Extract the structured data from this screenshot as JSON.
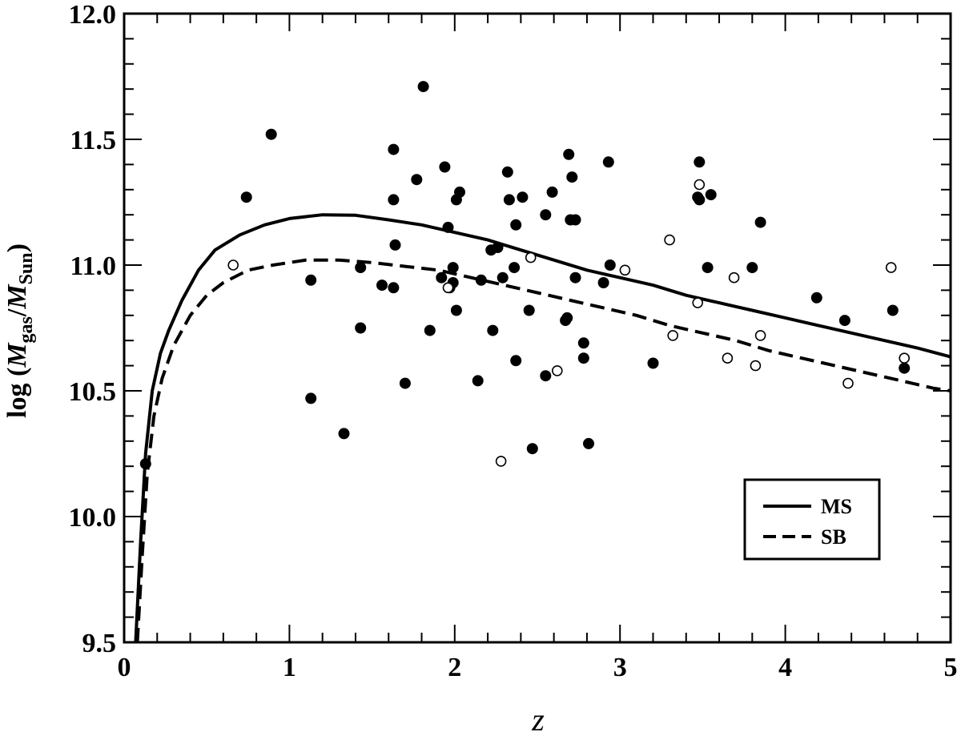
{
  "chart_data": {
    "type": "scatter",
    "xlabel": "z",
    "ylabel": {
      "prefix": "log (",
      "m1": "M",
      "sub1": "gas",
      "slash": "/",
      "m2": "M",
      "sub2": "Sun",
      "suffix": ")"
    },
    "xlim": [
      0,
      5
    ],
    "ylim": [
      9.5,
      12.0
    ],
    "x_ticks": [
      "0",
      "1",
      "2",
      "3",
      "4",
      "5"
    ],
    "y_ticks": [
      "9.5",
      "10.0",
      "10.5",
      "11.0",
      "11.5",
      "12.0"
    ],
    "legend": {
      "position": "bottom-right",
      "entries": [
        {
          "label": "MS",
          "style": "solid"
        },
        {
          "label": "SB",
          "style": "dashed"
        }
      ]
    },
    "lines": [
      {
        "name": "MS",
        "style": "solid",
        "points": [
          [
            0.07,
            9.5
          ],
          [
            0.1,
            9.9
          ],
          [
            0.13,
            10.25
          ],
          [
            0.17,
            10.5
          ],
          [
            0.22,
            10.65
          ],
          [
            0.27,
            10.74
          ],
          [
            0.35,
            10.86
          ],
          [
            0.45,
            10.98
          ],
          [
            0.55,
            11.06
          ],
          [
            0.7,
            11.12
          ],
          [
            0.85,
            11.16
          ],
          [
            1.0,
            11.185
          ],
          [
            1.2,
            11.2
          ],
          [
            1.4,
            11.198
          ],
          [
            1.6,
            11.18
          ],
          [
            1.8,
            11.16
          ],
          [
            2.0,
            11.13
          ],
          [
            2.2,
            11.1
          ],
          [
            2.4,
            11.06
          ],
          [
            2.6,
            11.02
          ],
          [
            2.8,
            10.98
          ],
          [
            3.0,
            10.95
          ],
          [
            3.2,
            10.92
          ],
          [
            3.4,
            10.88
          ],
          [
            3.6,
            10.85
          ],
          [
            3.8,
            10.82
          ],
          [
            4.0,
            10.79
          ],
          [
            4.2,
            10.76
          ],
          [
            4.4,
            10.73
          ],
          [
            4.6,
            10.7
          ],
          [
            4.8,
            10.67
          ],
          [
            5.0,
            10.635
          ]
        ]
      },
      {
        "name": "SB",
        "style": "dashed",
        "points": [
          [
            0.08,
            9.5
          ],
          [
            0.11,
            9.85
          ],
          [
            0.14,
            10.17
          ],
          [
            0.18,
            10.4
          ],
          [
            0.23,
            10.55
          ],
          [
            0.3,
            10.68
          ],
          [
            0.4,
            10.8
          ],
          [
            0.5,
            10.88
          ],
          [
            0.6,
            10.93
          ],
          [
            0.75,
            10.98
          ],
          [
            0.9,
            11.0
          ],
          [
            1.1,
            11.02
          ],
          [
            1.3,
            11.02
          ],
          [
            1.5,
            11.01
          ],
          [
            1.7,
            10.995
          ],
          [
            1.9,
            10.98
          ],
          [
            2.1,
            10.95
          ],
          [
            2.3,
            10.92
          ],
          [
            2.5,
            10.89
          ],
          [
            2.7,
            10.86
          ],
          [
            2.9,
            10.83
          ],
          [
            3.1,
            10.8
          ],
          [
            3.3,
            10.76
          ],
          [
            3.5,
            10.73
          ],
          [
            3.7,
            10.7
          ],
          [
            3.9,
            10.66
          ],
          [
            4.1,
            10.63
          ],
          [
            4.3,
            10.6
          ],
          [
            4.5,
            10.57
          ],
          [
            4.7,
            10.54
          ],
          [
            4.9,
            10.51
          ],
          [
            5.0,
            10.5
          ]
        ]
      }
    ],
    "series": [
      {
        "name": "filled",
        "marker": "filled-circle",
        "points": [
          [
            0.13,
            10.21
          ],
          [
            0.74,
            11.27
          ],
          [
            0.89,
            11.52
          ],
          [
            1.13,
            10.94
          ],
          [
            1.13,
            10.47
          ],
          [
            1.33,
            10.33
          ],
          [
            1.43,
            10.99
          ],
          [
            1.43,
            10.75
          ],
          [
            1.56,
            10.92
          ],
          [
            1.63,
            11.46
          ],
          [
            1.63,
            11.26
          ],
          [
            1.64,
            11.08
          ],
          [
            1.63,
            10.91
          ],
          [
            1.7,
            10.53
          ],
          [
            1.77,
            11.34
          ],
          [
            1.81,
            11.71
          ],
          [
            1.85,
            10.74
          ],
          [
            1.92,
            10.95
          ],
          [
            1.94,
            11.39
          ],
          [
            1.96,
            11.15
          ],
          [
            1.97,
            10.91
          ],
          [
            1.99,
            10.99
          ],
          [
            1.99,
            10.93
          ],
          [
            2.01,
            11.26
          ],
          [
            2.01,
            10.82
          ],
          [
            2.03,
            11.29
          ],
          [
            2.14,
            10.54
          ],
          [
            2.16,
            10.94
          ],
          [
            2.22,
            11.06
          ],
          [
            2.23,
            10.74
          ],
          [
            2.26,
            11.07
          ],
          [
            2.29,
            10.95
          ],
          [
            2.32,
            11.37
          ],
          [
            2.33,
            11.26
          ],
          [
            2.36,
            10.99
          ],
          [
            2.37,
            11.16
          ],
          [
            2.37,
            10.62
          ],
          [
            2.41,
            11.27
          ],
          [
            2.45,
            10.82
          ],
          [
            2.47,
            10.27
          ],
          [
            2.55,
            11.2
          ],
          [
            2.55,
            10.56
          ],
          [
            2.59,
            11.29
          ],
          [
            2.67,
            10.78
          ],
          [
            2.68,
            10.79
          ],
          [
            2.69,
            11.44
          ],
          [
            2.7,
            11.18
          ],
          [
            2.71,
            11.35
          ],
          [
            2.73,
            11.18
          ],
          [
            2.73,
            10.95
          ],
          [
            2.78,
            10.63
          ],
          [
            2.78,
            10.69
          ],
          [
            2.81,
            10.29
          ],
          [
            2.9,
            10.93
          ],
          [
            2.93,
            11.41
          ],
          [
            2.94,
            11.0
          ],
          [
            3.2,
            10.61
          ],
          [
            3.47,
            11.27
          ],
          [
            3.48,
            11.41
          ],
          [
            3.48,
            11.26
          ],
          [
            3.53,
            10.99
          ],
          [
            3.55,
            11.28
          ],
          [
            3.8,
            10.99
          ],
          [
            3.85,
            11.17
          ],
          [
            4.19,
            10.87
          ],
          [
            4.36,
            10.78
          ],
          [
            4.65,
            10.82
          ],
          [
            4.72,
            10.59
          ]
        ]
      },
      {
        "name": "open",
        "marker": "open-circle",
        "points": [
          [
            0.66,
            11.0
          ],
          [
            1.96,
            10.91
          ],
          [
            2.28,
            10.22
          ],
          [
            2.46,
            11.03
          ],
          [
            2.62,
            10.58
          ],
          [
            3.03,
            10.98
          ],
          [
            3.3,
            11.1
          ],
          [
            3.32,
            10.72
          ],
          [
            3.47,
            10.85
          ],
          [
            3.48,
            11.32
          ],
          [
            3.65,
            10.63
          ],
          [
            3.69,
            10.95
          ],
          [
            3.82,
            10.6
          ],
          [
            3.85,
            10.72
          ],
          [
            4.38,
            10.53
          ],
          [
            4.64,
            10.99
          ],
          [
            4.72,
            10.63
          ]
        ]
      }
    ]
  }
}
